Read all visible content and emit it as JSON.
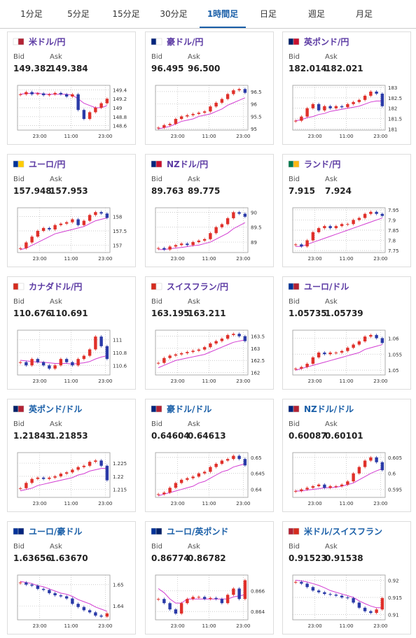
{
  "tabs": [
    "1分足",
    "5分足",
    "15分足",
    "30分足",
    "1時間足",
    "日足",
    "週足",
    "月足"
  ],
  "cards": [
    {
      "title": "米ドル/円",
      "bid_label": "Bid",
      "ask_label": "Ask",
      "bid": "149.382",
      "ask": "149.384",
      "chart": {
        "ylim": [
          148.5,
          149.5
        ],
        "yticks": [
          149.4,
          149.2,
          149,
          148.8,
          148.6
        ],
        "xticks": [
          "23:00",
          "11:00",
          "23:00"
        ],
        "closes": [
          149.3,
          149.35,
          149.3,
          149.32,
          149.28,
          149.3,
          149.33,
          149.3,
          149.25,
          149.3,
          148.95,
          148.75,
          148.9,
          149.0,
          149.1,
          149.2
        ],
        "ma": [
          149.3,
          149.32,
          149.32,
          149.33,
          149.3,
          149.3,
          149.3,
          149.3,
          149.3,
          149.28,
          149.2,
          149.1,
          149.05,
          149.0,
          149.0,
          149.05
        ]
      }
    },
    {
      "title": "豪ドル/円",
      "bid_label": "Bid",
      "ask_label": "Ask",
      "bid": "96.495",
      "ask": "96.500",
      "chart": {
        "ylim": [
          94.95,
          96.75
        ],
        "yticks": [
          96.5,
          96,
          95.5,
          95
        ],
        "xticks": [
          "23:00",
          "11:00",
          "23:00"
        ],
        "closes": [
          95.05,
          95.15,
          95.2,
          95.4,
          95.5,
          95.55,
          95.6,
          95.65,
          95.7,
          95.9,
          96.05,
          96.2,
          96.4,
          96.55,
          96.6,
          96.45
        ],
        "ma": [
          95.0,
          95.05,
          95.1,
          95.2,
          95.3,
          95.35,
          95.4,
          95.5,
          95.55,
          95.6,
          95.7,
          95.8,
          95.95,
          96.05,
          96.15,
          96.25
        ]
      }
    },
    {
      "title": "英ポンド/円",
      "bid_label": "Bid",
      "ask_label": "Ask",
      "bid": "182.014",
      "ask": "182.021",
      "chart": {
        "ylim": [
          180.95,
          183.1
        ],
        "yticks": [
          183,
          182.5,
          182,
          181.5,
          181
        ],
        "xticks": [
          "23:00",
          "11:00",
          "23:00"
        ],
        "closes": [
          181.4,
          181.6,
          182.0,
          182.2,
          181.9,
          182.1,
          182.0,
          182.1,
          182.05,
          182.2,
          182.3,
          182.4,
          182.6,
          182.8,
          182.7,
          182.1
        ],
        "ma": [
          181.4,
          181.45,
          181.55,
          181.6,
          181.7,
          181.75,
          181.85,
          181.9,
          181.95,
          182.0,
          182.05,
          182.1,
          182.2,
          182.3,
          182.35,
          182.35
        ]
      }
    },
    {
      "title": "ユーロ/円",
      "bid_label": "Bid",
      "ask_label": "Ask",
      "bid": "157.948",
      "ask": "157.953",
      "chart": {
        "ylim": [
          156.75,
          158.3
        ],
        "yticks": [
          158,
          157.5,
          157
        ],
        "xticks": [
          "23:00",
          "11:00",
          "23:00"
        ],
        "closes": [
          156.9,
          157.1,
          157.3,
          157.5,
          157.6,
          157.55,
          157.7,
          157.75,
          157.8,
          157.9,
          157.7,
          157.85,
          158.05,
          158.15,
          158.1,
          157.95
        ],
        "ma": [
          156.85,
          156.9,
          157.0,
          157.1,
          157.2,
          157.3,
          157.4,
          157.45,
          157.5,
          157.55,
          157.6,
          157.65,
          157.75,
          157.85,
          157.9,
          157.95
        ]
      }
    },
    {
      "title": "NZドル/円",
      "bid_label": "Bid",
      "ask_label": "Ask",
      "bid": "89.763",
      "ask": "89.775",
      "chart": {
        "ylim": [
          88.65,
          90.15
        ],
        "yticks": [
          90,
          89.5,
          89
        ],
        "xticks": [
          "23:00",
          "11:00",
          "23:00"
        ],
        "closes": [
          88.8,
          88.75,
          88.85,
          88.9,
          88.95,
          88.9,
          89.0,
          89.05,
          89.1,
          89.3,
          89.5,
          89.6,
          89.8,
          90.0,
          89.95,
          89.85
        ],
        "ma": [
          88.75,
          88.75,
          88.78,
          88.8,
          88.82,
          88.85,
          88.88,
          88.9,
          88.95,
          89.0,
          89.1,
          89.2,
          89.3,
          89.45,
          89.55,
          89.65
        ]
      }
    },
    {
      "title": "ランド/円",
      "bid_label": "Bid",
      "ask_label": "Ask",
      "bid": "7.915",
      "ask": "7.924",
      "chart": {
        "ylim": [
          7.74,
          7.96
        ],
        "yticks": [
          7.95,
          7.9,
          7.85,
          7.8,
          7.75
        ],
        "xticks": [
          "23:00",
          "11:00",
          "23:00"
        ],
        "closes": [
          7.78,
          7.77,
          7.8,
          7.84,
          7.86,
          7.87,
          7.86,
          7.87,
          7.88,
          7.88,
          7.9,
          7.91,
          7.93,
          7.94,
          7.93,
          7.92
        ],
        "ma": [
          7.77,
          7.77,
          7.78,
          7.79,
          7.8,
          7.81,
          7.82,
          7.83,
          7.84,
          7.85,
          7.86,
          7.87,
          7.88,
          7.89,
          7.9,
          7.91
        ]
      }
    },
    {
      "title": "カナダドル/円",
      "bid_label": "Bid",
      "ask_label": "Ask",
      "bid": "110.676",
      "ask": "110.691",
      "chart": {
        "ylim": [
          110.45,
          111.15
        ],
        "yticks": [
          111,
          110.8,
          110.6
        ],
        "xticks": [
          "23:00",
          "11:00",
          "23:00"
        ],
        "closes": [
          110.65,
          110.6,
          110.7,
          110.65,
          110.6,
          110.55,
          110.6,
          110.7,
          110.65,
          110.6,
          110.7,
          110.75,
          110.85,
          111.05,
          110.9,
          110.7
        ],
        "ma": [
          110.68,
          110.67,
          110.66,
          110.65,
          110.65,
          110.64,
          110.63,
          110.63,
          110.63,
          110.62,
          110.63,
          110.64,
          110.66,
          110.7,
          110.73,
          110.75
        ]
      }
    },
    {
      "title": "スイスフラン/円",
      "bid_label": "Bid",
      "ask_label": "Ask",
      "bid": "163.195",
      "ask": "163.211",
      "chart": {
        "ylim": [
          161.9,
          163.75
        ],
        "yticks": [
          163.5,
          163,
          162.5,
          162
        ],
        "xticks": [
          "23:00",
          "11:00",
          "23:00"
        ],
        "closes": [
          162.4,
          162.6,
          162.7,
          162.75,
          162.8,
          162.85,
          162.9,
          162.95,
          163.05,
          163.2,
          163.3,
          163.4,
          163.55,
          163.6,
          163.5,
          163.3
        ],
        "ma": [
          162.2,
          162.3,
          162.4,
          162.5,
          162.55,
          162.6,
          162.65,
          162.7,
          162.75,
          162.85,
          162.95,
          163.05,
          163.15,
          163.25,
          163.3,
          163.35
        ]
      }
    },
    {
      "title": "ユーロ/ドル",
      "bid_label": "Bid",
      "ask_label": "Ask",
      "bid": "1.05735",
      "ask": "1.05739",
      "chart": {
        "ylim": [
          1.0485,
          1.0625
        ],
        "yticks": [
          1.06,
          1.055,
          1.05
        ],
        "xticks": [
          "23:00",
          "11:00",
          "23:00"
        ],
        "closes": [
          1.0505,
          1.051,
          1.052,
          1.054,
          1.0555,
          1.055,
          1.0555,
          1.0555,
          1.056,
          1.057,
          1.058,
          1.059,
          1.0605,
          1.061,
          1.06,
          1.0585
        ],
        "ma": [
          1.05,
          1.0505,
          1.051,
          1.0515,
          1.052,
          1.0525,
          1.053,
          1.0535,
          1.054,
          1.0545,
          1.055,
          1.0555,
          1.0565,
          1.057,
          1.0575,
          1.058
        ]
      }
    },
    {
      "title": "英ポンド/ドル",
      "bid_label": "Bid",
      "ask_label": "Ask",
      "bid": "1.21843",
      "ask": "1.21853",
      "chart": {
        "ylim": [
          1.212,
          1.229
        ],
        "yticks": [
          1.225,
          1.22,
          1.215
        ],
        "xticks": [
          "23:00",
          "11:00",
          "23:00"
        ],
        "closes": [
          1.2155,
          1.2175,
          1.219,
          1.2195,
          1.219,
          1.2195,
          1.22,
          1.221,
          1.2215,
          1.2225,
          1.2235,
          1.224,
          1.2255,
          1.226,
          1.224,
          1.2185
        ],
        "ma": [
          1.2145,
          1.215,
          1.2155,
          1.2165,
          1.217,
          1.2175,
          1.218,
          1.2185,
          1.219,
          1.2195,
          1.2205,
          1.221,
          1.222,
          1.2225,
          1.223,
          1.223
        ]
      }
    },
    {
      "title": "豪ドル/ドル",
      "bid_label": "Bid",
      "ask_label": "Ask",
      "bid": "0.64604",
      "ask": "0.64613",
      "chart": {
        "ylim": [
          0.6375,
          0.6515
        ],
        "yticks": [
          0.65,
          0.645,
          0.64
        ],
        "xticks": [
          "23:00",
          "11:00",
          "23:00"
        ],
        "closes": [
          0.6385,
          0.639,
          0.6405,
          0.642,
          0.643,
          0.6435,
          0.644,
          0.645,
          0.6455,
          0.647,
          0.648,
          0.649,
          0.6495,
          0.6505,
          0.6495,
          0.6475
        ],
        "ma": [
          0.638,
          0.6385,
          0.639,
          0.6395,
          0.64,
          0.6405,
          0.641,
          0.642,
          0.6425,
          0.6435,
          0.6445,
          0.6455,
          0.646,
          0.647,
          0.6475,
          0.648
        ]
      }
    },
    {
      "title": "NZドル/ドル",
      "bid_label": "Bid",
      "ask_label": "Ask",
      "bid": "0.60087",
      "ask": "0.60101",
      "chart": {
        "ylim": [
          0.5925,
          0.6065
        ],
        "yticks": [
          0.605,
          0.6,
          0.595
        ],
        "xticks": [
          "23:00",
          "11:00",
          "23:00"
        ],
        "closes": [
          0.5945,
          0.595,
          0.5955,
          0.596,
          0.5965,
          0.5955,
          0.596,
          0.596,
          0.5965,
          0.5975,
          0.6,
          0.602,
          0.604,
          0.605,
          0.6035,
          0.601
        ],
        "ma": [
          0.5945,
          0.5945,
          0.5948,
          0.595,
          0.5952,
          0.5955,
          0.5955,
          0.5957,
          0.596,
          0.5965,
          0.597,
          0.598,
          0.599,
          0.6,
          0.6008,
          0.6015
        ]
      }
    },
    {
      "title": "ユーロ/豪ドル",
      "bid_label": "Bid",
      "ask_label": "Ask",
      "bid": "1.63656",
      "ask": "1.63670",
      "chart": {
        "ylim": [
          1.6335,
          1.6545
        ],
        "yticks": [
          1.65,
          1.64
        ],
        "xticks": [
          "23:00",
          "11:00",
          "23:00"
        ],
        "closes": [
          1.651,
          1.65,
          1.6495,
          1.648,
          1.6475,
          1.646,
          1.645,
          1.6445,
          1.6435,
          1.641,
          1.6395,
          1.638,
          1.637,
          1.6355,
          1.635,
          1.6365
        ],
        "ma": [
          1.6515,
          1.651,
          1.6505,
          1.6495,
          1.649,
          1.648,
          1.647,
          1.646,
          1.6455,
          1.6445,
          1.643,
          1.642,
          1.641,
          1.6395,
          1.6385,
          1.6375
        ]
      }
    },
    {
      "title": "ユーロ/英ポンド",
      "bid_label": "Bid",
      "ask_label": "Ask",
      "bid": "0.86774",
      "ask": "0.86782",
      "chart": {
        "ylim": [
          0.8632,
          0.8675
        ],
        "yticks": [
          0.866,
          0.864
        ],
        "xticks": [
          "23:00",
          "11:00",
          "23:00"
        ],
        "closes": [
          0.8652,
          0.8648,
          0.8642,
          0.8638,
          0.8648,
          0.8652,
          0.8654,
          0.8654,
          0.8652,
          0.8653,
          0.8652,
          0.8648,
          0.8656,
          0.8662,
          0.8652,
          0.867
        ],
        "ma": [
          0.8662,
          0.8658,
          0.8652,
          0.8648,
          0.8648,
          0.8652,
          0.8652,
          0.8652,
          0.8652,
          0.8652,
          0.8652,
          0.8652,
          0.8652,
          0.8654,
          0.8655,
          0.8656
        ]
      }
    },
    {
      "title": "米ドル/スイスフラン",
      "bid_label": "Bid",
      "ask_label": "Ask",
      "bid": "0.91523",
      "ask": "0.91538",
      "chart": {
        "ylim": [
          0.9085,
          0.9215
        ],
        "yticks": [
          0.92,
          0.915,
          0.91
        ],
        "xticks": [
          "23:00",
          "11:00",
          "23:00"
        ],
        "closes": [
          0.9195,
          0.919,
          0.918,
          0.917,
          0.9165,
          0.916,
          0.9158,
          0.9155,
          0.915,
          0.9148,
          0.9135,
          0.912,
          0.911,
          0.9105,
          0.9115,
          0.9148
        ],
        "ma": [
          0.92,
          0.9198,
          0.9195,
          0.919,
          0.9185,
          0.9178,
          0.917,
          0.9165,
          0.916,
          0.9155,
          0.915,
          0.914,
          0.9132,
          0.9125,
          0.912,
          0.912
        ]
      }
    }
  ]
}
